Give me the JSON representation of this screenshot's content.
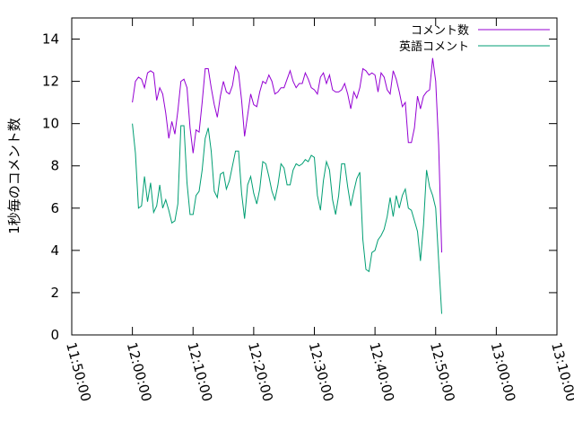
{
  "chart_data": {
    "type": "line",
    "title": "",
    "xlabel": "",
    "ylabel": "1秒毎のコメント数",
    "x_ticks": [
      "11:50:00",
      "12:00:00",
      "12:10:00",
      "12:20:00",
      "12:30:00",
      "12:40:00",
      "12:50:00",
      "13:00:00",
      "13:10:00"
    ],
    "y_ticks": [
      "0",
      "2",
      "4",
      "6",
      "8",
      "10",
      "12",
      "14"
    ],
    "xlim": [
      "11:50:00",
      "13:10:00"
    ],
    "ylim": [
      0,
      15
    ],
    "legend_position": "top-right",
    "grid": false,
    "series": [
      {
        "name": "コメント数",
        "color": "#9400d3",
        "points": [
          [
            "12:00:00",
            11.0
          ],
          [
            "12:00:30",
            12.0
          ],
          [
            "12:01:00",
            12.2
          ],
          [
            "12:01:30",
            12.1
          ],
          [
            "12:02:00",
            11.7
          ],
          [
            "12:02:30",
            12.4
          ],
          [
            "12:03:00",
            12.5
          ],
          [
            "12:03:30",
            12.4
          ],
          [
            "12:04:00",
            11.1
          ],
          [
            "12:04:30",
            11.7
          ],
          [
            "12:05:00",
            11.4
          ],
          [
            "12:05:30",
            10.5
          ],
          [
            "12:06:00",
            9.3
          ],
          [
            "12:06:30",
            10.1
          ],
          [
            "12:07:00",
            9.5
          ],
          [
            "12:07:30",
            10.6
          ],
          [
            "12:08:00",
            12.0
          ],
          [
            "12:08:30",
            12.1
          ],
          [
            "12:09:00",
            11.7
          ],
          [
            "12:09:30",
            9.8
          ],
          [
            "12:10:00",
            8.6
          ],
          [
            "12:10:30",
            9.7
          ],
          [
            "12:11:00",
            9.6
          ],
          [
            "12:11:30",
            11.0
          ],
          [
            "12:12:00",
            12.6
          ],
          [
            "12:12:30",
            12.6
          ],
          [
            "12:13:00",
            11.7
          ],
          [
            "12:13:30",
            10.9
          ],
          [
            "12:14:00",
            10.3
          ],
          [
            "12:14:30",
            11.3
          ],
          [
            "12:15:00",
            12.0
          ],
          [
            "12:15:30",
            11.5
          ],
          [
            "12:16:00",
            11.4
          ],
          [
            "12:16:30",
            11.8
          ],
          [
            "12:17:00",
            12.7
          ],
          [
            "12:17:30",
            12.4
          ],
          [
            "12:18:00",
            11.1
          ],
          [
            "12:18:30",
            9.4
          ],
          [
            "12:19:00",
            10.4
          ],
          [
            "12:19:30",
            11.4
          ],
          [
            "12:20:00",
            10.9
          ],
          [
            "12:20:30",
            10.8
          ],
          [
            "12:21:00",
            11.5
          ],
          [
            "12:21:30",
            12.0
          ],
          [
            "12:22:00",
            11.9
          ],
          [
            "12:22:30",
            12.3
          ],
          [
            "12:23:00",
            12.0
          ],
          [
            "12:23:30",
            11.4
          ],
          [
            "12:24:00",
            11.5
          ],
          [
            "12:24:30",
            11.7
          ],
          [
            "12:25:00",
            11.7
          ],
          [
            "12:25:30",
            12.1
          ],
          [
            "12:26:00",
            12.5
          ],
          [
            "12:26:30",
            12.0
          ],
          [
            "12:27:00",
            11.7
          ],
          [
            "12:27:30",
            11.9
          ],
          [
            "12:28:00",
            11.9
          ],
          [
            "12:28:30",
            12.4
          ],
          [
            "12:29:00",
            12.1
          ],
          [
            "12:29:30",
            11.7
          ],
          [
            "12:30:00",
            11.6
          ],
          [
            "12:30:30",
            11.4
          ],
          [
            "12:31:00",
            12.2
          ],
          [
            "12:31:30",
            12.4
          ],
          [
            "12:32:00",
            11.9
          ],
          [
            "12:32:30",
            12.3
          ],
          [
            "12:33:00",
            11.6
          ],
          [
            "12:33:30",
            11.5
          ],
          [
            "12:34:00",
            11.5
          ],
          [
            "12:34:30",
            11.6
          ],
          [
            "12:35:00",
            11.9
          ],
          [
            "12:35:30",
            11.4
          ],
          [
            "12:36:00",
            10.7
          ],
          [
            "12:36:30",
            11.5
          ],
          [
            "12:37:00",
            11.2
          ],
          [
            "12:37:30",
            11.7
          ],
          [
            "12:38:00",
            12.6
          ],
          [
            "12:38:30",
            12.5
          ],
          [
            "12:39:00",
            12.3
          ],
          [
            "12:39:30",
            12.4
          ],
          [
            "12:40:00",
            12.3
          ],
          [
            "12:40:30",
            11.5
          ],
          [
            "12:41:00",
            12.4
          ],
          [
            "12:41:30",
            12.2
          ],
          [
            "12:42:00",
            11.6
          ],
          [
            "12:42:30",
            11.4
          ],
          [
            "12:43:00",
            12.5
          ],
          [
            "12:43:30",
            12.1
          ],
          [
            "12:44:00",
            11.5
          ],
          [
            "12:44:30",
            10.8
          ],
          [
            "12:45:00",
            11.0
          ],
          [
            "12:45:30",
            9.1
          ],
          [
            "12:46:00",
            9.1
          ],
          [
            "12:46:30",
            9.8
          ],
          [
            "12:47:00",
            11.3
          ],
          [
            "12:47:30",
            10.7
          ],
          [
            "12:48:00",
            11.3
          ],
          [
            "12:48:30",
            11.5
          ],
          [
            "12:49:00",
            11.6
          ],
          [
            "12:49:30",
            13.1
          ],
          [
            "12:50:00",
            12.0
          ],
          [
            "12:50:30",
            9.0
          ],
          [
            "12:51:00",
            3.9
          ]
        ]
      },
      {
        "name": "英語コメント",
        "color": "#009e73",
        "points": [
          [
            "12:00:00",
            10.0
          ],
          [
            "12:00:30",
            8.6
          ],
          [
            "12:01:00",
            6.0
          ],
          [
            "12:01:30",
            6.1
          ],
          [
            "12:02:00",
            7.5
          ],
          [
            "12:02:30",
            6.3
          ],
          [
            "12:03:00",
            7.2
          ],
          [
            "12:03:30",
            5.8
          ],
          [
            "12:04:00",
            6.1
          ],
          [
            "12:04:30",
            7.1
          ],
          [
            "12:05:00",
            6.0
          ],
          [
            "12:05:30",
            6.4
          ],
          [
            "12:06:00",
            5.9
          ],
          [
            "12:06:30",
            5.3
          ],
          [
            "12:07:00",
            5.4
          ],
          [
            "12:07:30",
            6.2
          ],
          [
            "12:08:00",
            9.9
          ],
          [
            "12:08:30",
            9.9
          ],
          [
            "12:09:00",
            7.2
          ],
          [
            "12:09:30",
            5.7
          ],
          [
            "12:10:00",
            5.7
          ],
          [
            "12:10:30",
            6.6
          ],
          [
            "12:11:00",
            6.8
          ],
          [
            "12:11:30",
            7.8
          ],
          [
            "12:12:00",
            9.3
          ],
          [
            "12:12:30",
            9.8
          ],
          [
            "12:13:00",
            8.7
          ],
          [
            "12:13:30",
            6.8
          ],
          [
            "12:14:00",
            6.5
          ],
          [
            "12:14:30",
            7.6
          ],
          [
            "12:15:00",
            7.7
          ],
          [
            "12:15:30",
            6.9
          ],
          [
            "12:16:00",
            7.3
          ],
          [
            "12:16:30",
            8.0
          ],
          [
            "12:17:00",
            8.7
          ],
          [
            "12:17:30",
            8.7
          ],
          [
            "12:18:00",
            6.7
          ],
          [
            "12:18:30",
            5.5
          ],
          [
            "12:19:00",
            7.1
          ],
          [
            "12:19:30",
            7.5
          ],
          [
            "12:20:00",
            6.7
          ],
          [
            "12:20:30",
            6.2
          ],
          [
            "12:21:00",
            6.9
          ],
          [
            "12:21:30",
            8.2
          ],
          [
            "12:22:00",
            8.1
          ],
          [
            "12:22:30",
            7.5
          ],
          [
            "12:23:00",
            6.8
          ],
          [
            "12:23:30",
            6.4
          ],
          [
            "12:24:00",
            7.1
          ],
          [
            "12:24:30",
            8.1
          ],
          [
            "12:25:00",
            7.9
          ],
          [
            "12:25:30",
            7.1
          ],
          [
            "12:26:00",
            7.1
          ],
          [
            "12:26:30",
            7.8
          ],
          [
            "12:27:00",
            8.1
          ],
          [
            "12:27:30",
            8.0
          ],
          [
            "12:28:00",
            8.1
          ],
          [
            "12:28:30",
            8.3
          ],
          [
            "12:29:00",
            8.2
          ],
          [
            "12:29:30",
            8.5
          ],
          [
            "12:30:00",
            8.4
          ],
          [
            "12:30:30",
            6.6
          ],
          [
            "12:31:00",
            5.9
          ],
          [
            "12:31:30",
            7.3
          ],
          [
            "12:32:00",
            8.2
          ],
          [
            "12:32:30",
            7.8
          ],
          [
            "12:33:00",
            6.4
          ],
          [
            "12:33:30",
            5.7
          ],
          [
            "12:34:00",
            6.6
          ],
          [
            "12:34:30",
            8.1
          ],
          [
            "12:35:00",
            8.1
          ],
          [
            "12:35:30",
            7.0
          ],
          [
            "12:36:00",
            6.1
          ],
          [
            "12:36:30",
            6.8
          ],
          [
            "12:37:00",
            7.4
          ],
          [
            "12:37:30",
            7.7
          ],
          [
            "12:38:00",
            4.5
          ],
          [
            "12:38:30",
            3.1
          ],
          [
            "12:39:00",
            3.0
          ],
          [
            "12:39:30",
            3.9
          ],
          [
            "12:40:00",
            4.0
          ],
          [
            "12:40:30",
            4.5
          ],
          [
            "12:41:00",
            4.7
          ],
          [
            "12:41:30",
            5.0
          ],
          [
            "12:42:00",
            5.6
          ],
          [
            "12:42:30",
            6.5
          ],
          [
            "12:43:00",
            5.6
          ],
          [
            "12:43:30",
            6.6
          ],
          [
            "12:44:00",
            6.0
          ],
          [
            "12:44:30",
            6.6
          ],
          [
            "12:45:00",
            6.9
          ],
          [
            "12:45:30",
            6.0
          ],
          [
            "12:46:00",
            5.9
          ],
          [
            "12:46:30",
            5.4
          ],
          [
            "12:47:00",
            4.9
          ],
          [
            "12:47:30",
            3.5
          ],
          [
            "12:48:00",
            5.2
          ],
          [
            "12:48:30",
            7.8
          ],
          [
            "12:49:00",
            7.0
          ],
          [
            "12:49:30",
            6.6
          ],
          [
            "12:50:00",
            6.0
          ],
          [
            "12:50:30",
            3.5
          ],
          [
            "12:51:00",
            1.0
          ]
        ]
      }
    ]
  }
}
